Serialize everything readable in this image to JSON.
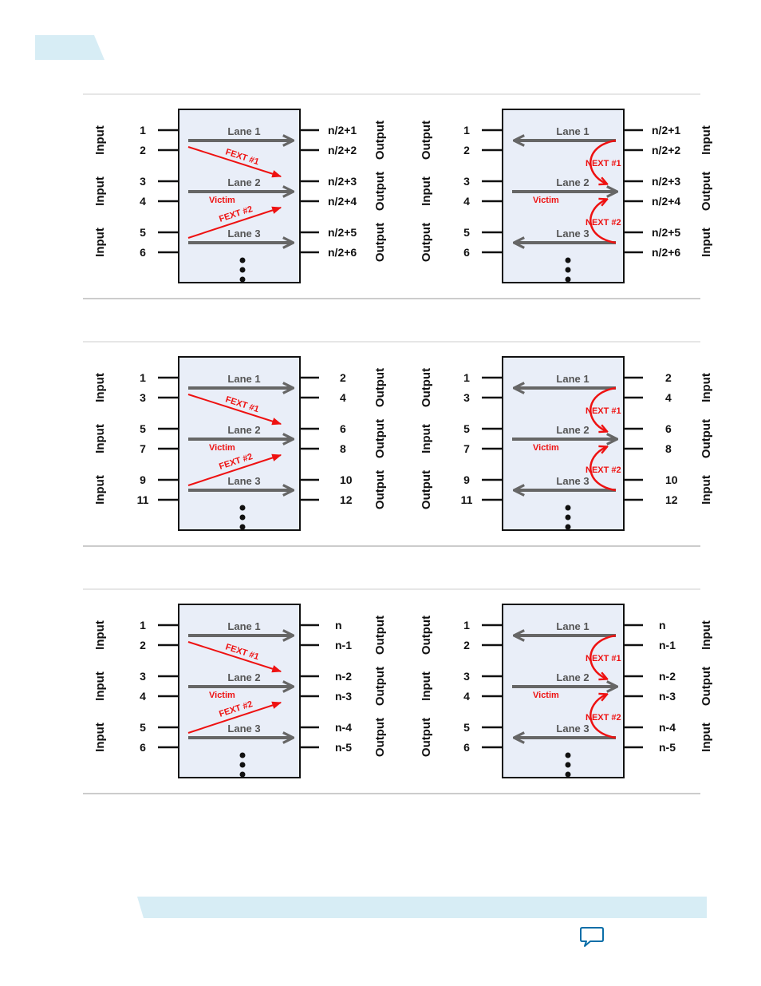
{
  "colors": {
    "box_fill": "#e9eef8",
    "lane_arrow": "#666666",
    "crosstalk": "#ee1111",
    "band": "#d7edf5",
    "divider": "#cccccc",
    "pin": "#111111"
  },
  "figures": [
    {
      "fext": {
        "left_pins": [
          "1",
          "2",
          "3",
          "4",
          "5",
          "6"
        ],
        "right_pins": [
          "n/2+1",
          "n/2+2",
          "n/2+3",
          "n/2+4",
          "n/2+5",
          "n/2+6"
        ],
        "left_group_labels": [
          "Input",
          "Input",
          "Input"
        ],
        "right_group_labels": [
          "Output",
          "Output",
          "Output"
        ],
        "lanes": [
          "Lane 1",
          "Lane 2",
          "Lane 3"
        ],
        "victim": "Victim",
        "crosstalk": [
          "FEXT #1",
          "FEXT #2"
        ]
      },
      "next": {
        "left_pins": [
          "1",
          "2",
          "3",
          "4",
          "5",
          "6"
        ],
        "right_pins": [
          "n/2+1",
          "n/2+2",
          "n/2+3",
          "n/2+4",
          "n/2+5",
          "n/2+6"
        ],
        "left_group_labels": [
          "Output",
          "Input",
          "Output"
        ],
        "right_group_labels": [
          "Input",
          "Output",
          "Input"
        ],
        "lanes": [
          "Lane 1",
          "Lane 2",
          "Lane 3"
        ],
        "victim": "Victim",
        "crosstalk": [
          "NEXT #1",
          "NEXT #2"
        ]
      }
    },
    {
      "fext": {
        "left_pins": [
          "1",
          "3",
          "5",
          "7",
          "9",
          "11"
        ],
        "right_pins": [
          "2",
          "4",
          "6",
          "8",
          "10",
          "12"
        ],
        "left_group_labels": [
          "Input",
          "Input",
          "Input"
        ],
        "right_group_labels": [
          "Output",
          "Output",
          "Output"
        ],
        "lanes": [
          "Lane 1",
          "Lane 2",
          "Lane 3"
        ],
        "victim": "Victim",
        "crosstalk": [
          "FEXT #1",
          "FEXT #2"
        ]
      },
      "next": {
        "left_pins": [
          "1",
          "3",
          "5",
          "7",
          "9",
          "11"
        ],
        "right_pins": [
          "2",
          "4",
          "6",
          "8",
          "10",
          "12"
        ],
        "left_group_labels": [
          "Output",
          "Input",
          "Output"
        ],
        "right_group_labels": [
          "Input",
          "Output",
          "Input"
        ],
        "lanes": [
          "Lane 1",
          "Lane 2",
          "Lane 3"
        ],
        "victim": "Victim",
        "crosstalk": [
          "NEXT #1",
          "NEXT #2"
        ]
      }
    },
    {
      "fext": {
        "left_pins": [
          "1",
          "2",
          "3",
          "4",
          "5",
          "6"
        ],
        "right_pins": [
          "n",
          "n-1",
          "n-2",
          "n-3",
          "n-4",
          "n-5"
        ],
        "left_group_labels": [
          "Input",
          "Input",
          "Input"
        ],
        "right_group_labels": [
          "Output",
          "Output",
          "Output"
        ],
        "lanes": [
          "Lane 1",
          "Lane 2",
          "Lane 3"
        ],
        "victim": "Victim",
        "crosstalk": [
          "FEXT #1",
          "FEXT #2"
        ]
      },
      "next": {
        "left_pins": [
          "1",
          "2",
          "3",
          "4",
          "5",
          "6"
        ],
        "right_pins": [
          "n",
          "n-1",
          "n-2",
          "n-3",
          "n-4",
          "n-5"
        ],
        "left_group_labels": [
          "Output",
          "Input",
          "Output"
        ],
        "right_group_labels": [
          "Input",
          "Output",
          "Input"
        ],
        "lanes": [
          "Lane 1",
          "Lane 2",
          "Lane 3"
        ],
        "victim": "Victim",
        "crosstalk": [
          "NEXT #1",
          "NEXT #2"
        ]
      }
    }
  ],
  "footer": {
    "feedback_icon": "feedback-speech-bubble-icon"
  }
}
